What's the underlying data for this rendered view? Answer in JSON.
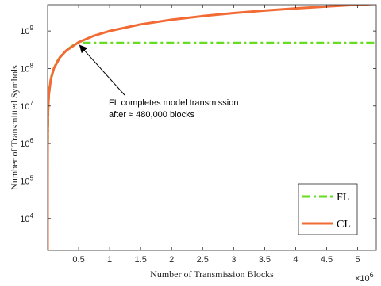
{
  "chart_data": {
    "type": "line",
    "title": "",
    "xlabel": "Number of Transmission Blocks",
    "ylabel": "Number of Transmitted Symbols",
    "x_exponent_label": "×10",
    "x_exponent_power": "6",
    "xlim": [
      0,
      5.3
    ],
    "ylim_log10": [
      3.15,
      9.7
    ],
    "yscale": "log",
    "grid": false,
    "legend_position": "bottom-right",
    "x_ticks": [
      {
        "value": 0.5,
        "label": "0.5"
      },
      {
        "value": 1,
        "label": "1"
      },
      {
        "value": 1.5,
        "label": "1.5"
      },
      {
        "value": 2,
        "label": "2"
      },
      {
        "value": 2.5,
        "label": "2.5"
      },
      {
        "value": 3,
        "label": "3"
      },
      {
        "value": 3.5,
        "label": "3.5"
      },
      {
        "value": 4,
        "label": "4"
      },
      {
        "value": 4.5,
        "label": "4.5"
      },
      {
        "value": 5,
        "label": "5"
      }
    ],
    "y_ticks": [
      {
        "value": 4,
        "base": "10",
        "exp": "4"
      },
      {
        "value": 5,
        "base": "10",
        "exp": "5"
      },
      {
        "value": 6,
        "base": "10",
        "exp": "6"
      },
      {
        "value": 7,
        "base": "10",
        "exp": "7"
      },
      {
        "value": 8,
        "base": "10",
        "exp": "8"
      },
      {
        "value": 9,
        "base": "10",
        "exp": "9"
      }
    ],
    "series": [
      {
        "name": "FL",
        "color": "#66dd22",
        "style": "dash-dot",
        "x": [
          0.001,
          0.01,
          0.03,
          0.06,
          0.1,
          0.15,
          0.2,
          0.25,
          0.3,
          0.35,
          0.4,
          0.45,
          0.48,
          1.0,
          2.0,
          3.0,
          4.0,
          5.0,
          5.3
        ],
        "y": [
          1000000,
          10000000,
          30000000,
          60000000,
          100000000,
          150000000,
          200000000,
          250000000,
          300000000,
          350000000,
          400000000,
          450000000,
          480000000,
          480000000,
          480000000,
          480000000,
          480000000,
          480000000,
          480000000
        ]
      },
      {
        "name": "CL",
        "color": "#f26b35",
        "style": "solid",
        "x": [
          1.4e-06,
          1e-05,
          0.0001,
          0.001,
          0.005,
          0.01,
          0.02,
          0.05,
          0.1,
          0.2,
          0.3,
          0.5,
          0.75,
          1.0,
          1.5,
          2.0,
          2.5,
          3.0,
          3.5,
          4.0,
          4.5,
          5.0,
          5.3
        ],
        "y": [
          1400,
          10000,
          100000,
          1000000,
          5000000,
          10000000,
          20000000,
          50000000,
          100000000,
          200000000,
          300000000,
          500000000,
          750000000,
          1000000000,
          1500000000,
          2000000000,
          2500000000,
          3000000000,
          3500000000,
          4000000000,
          4500000000,
          5000000000,
          5300000000
        ]
      }
    ],
    "annotation": {
      "line1": "FL completes model transmission",
      "line2": "after ≈ 480,000 blocks",
      "arrow_to": {
        "x": 0.48,
        "y": 480000000
      }
    }
  }
}
